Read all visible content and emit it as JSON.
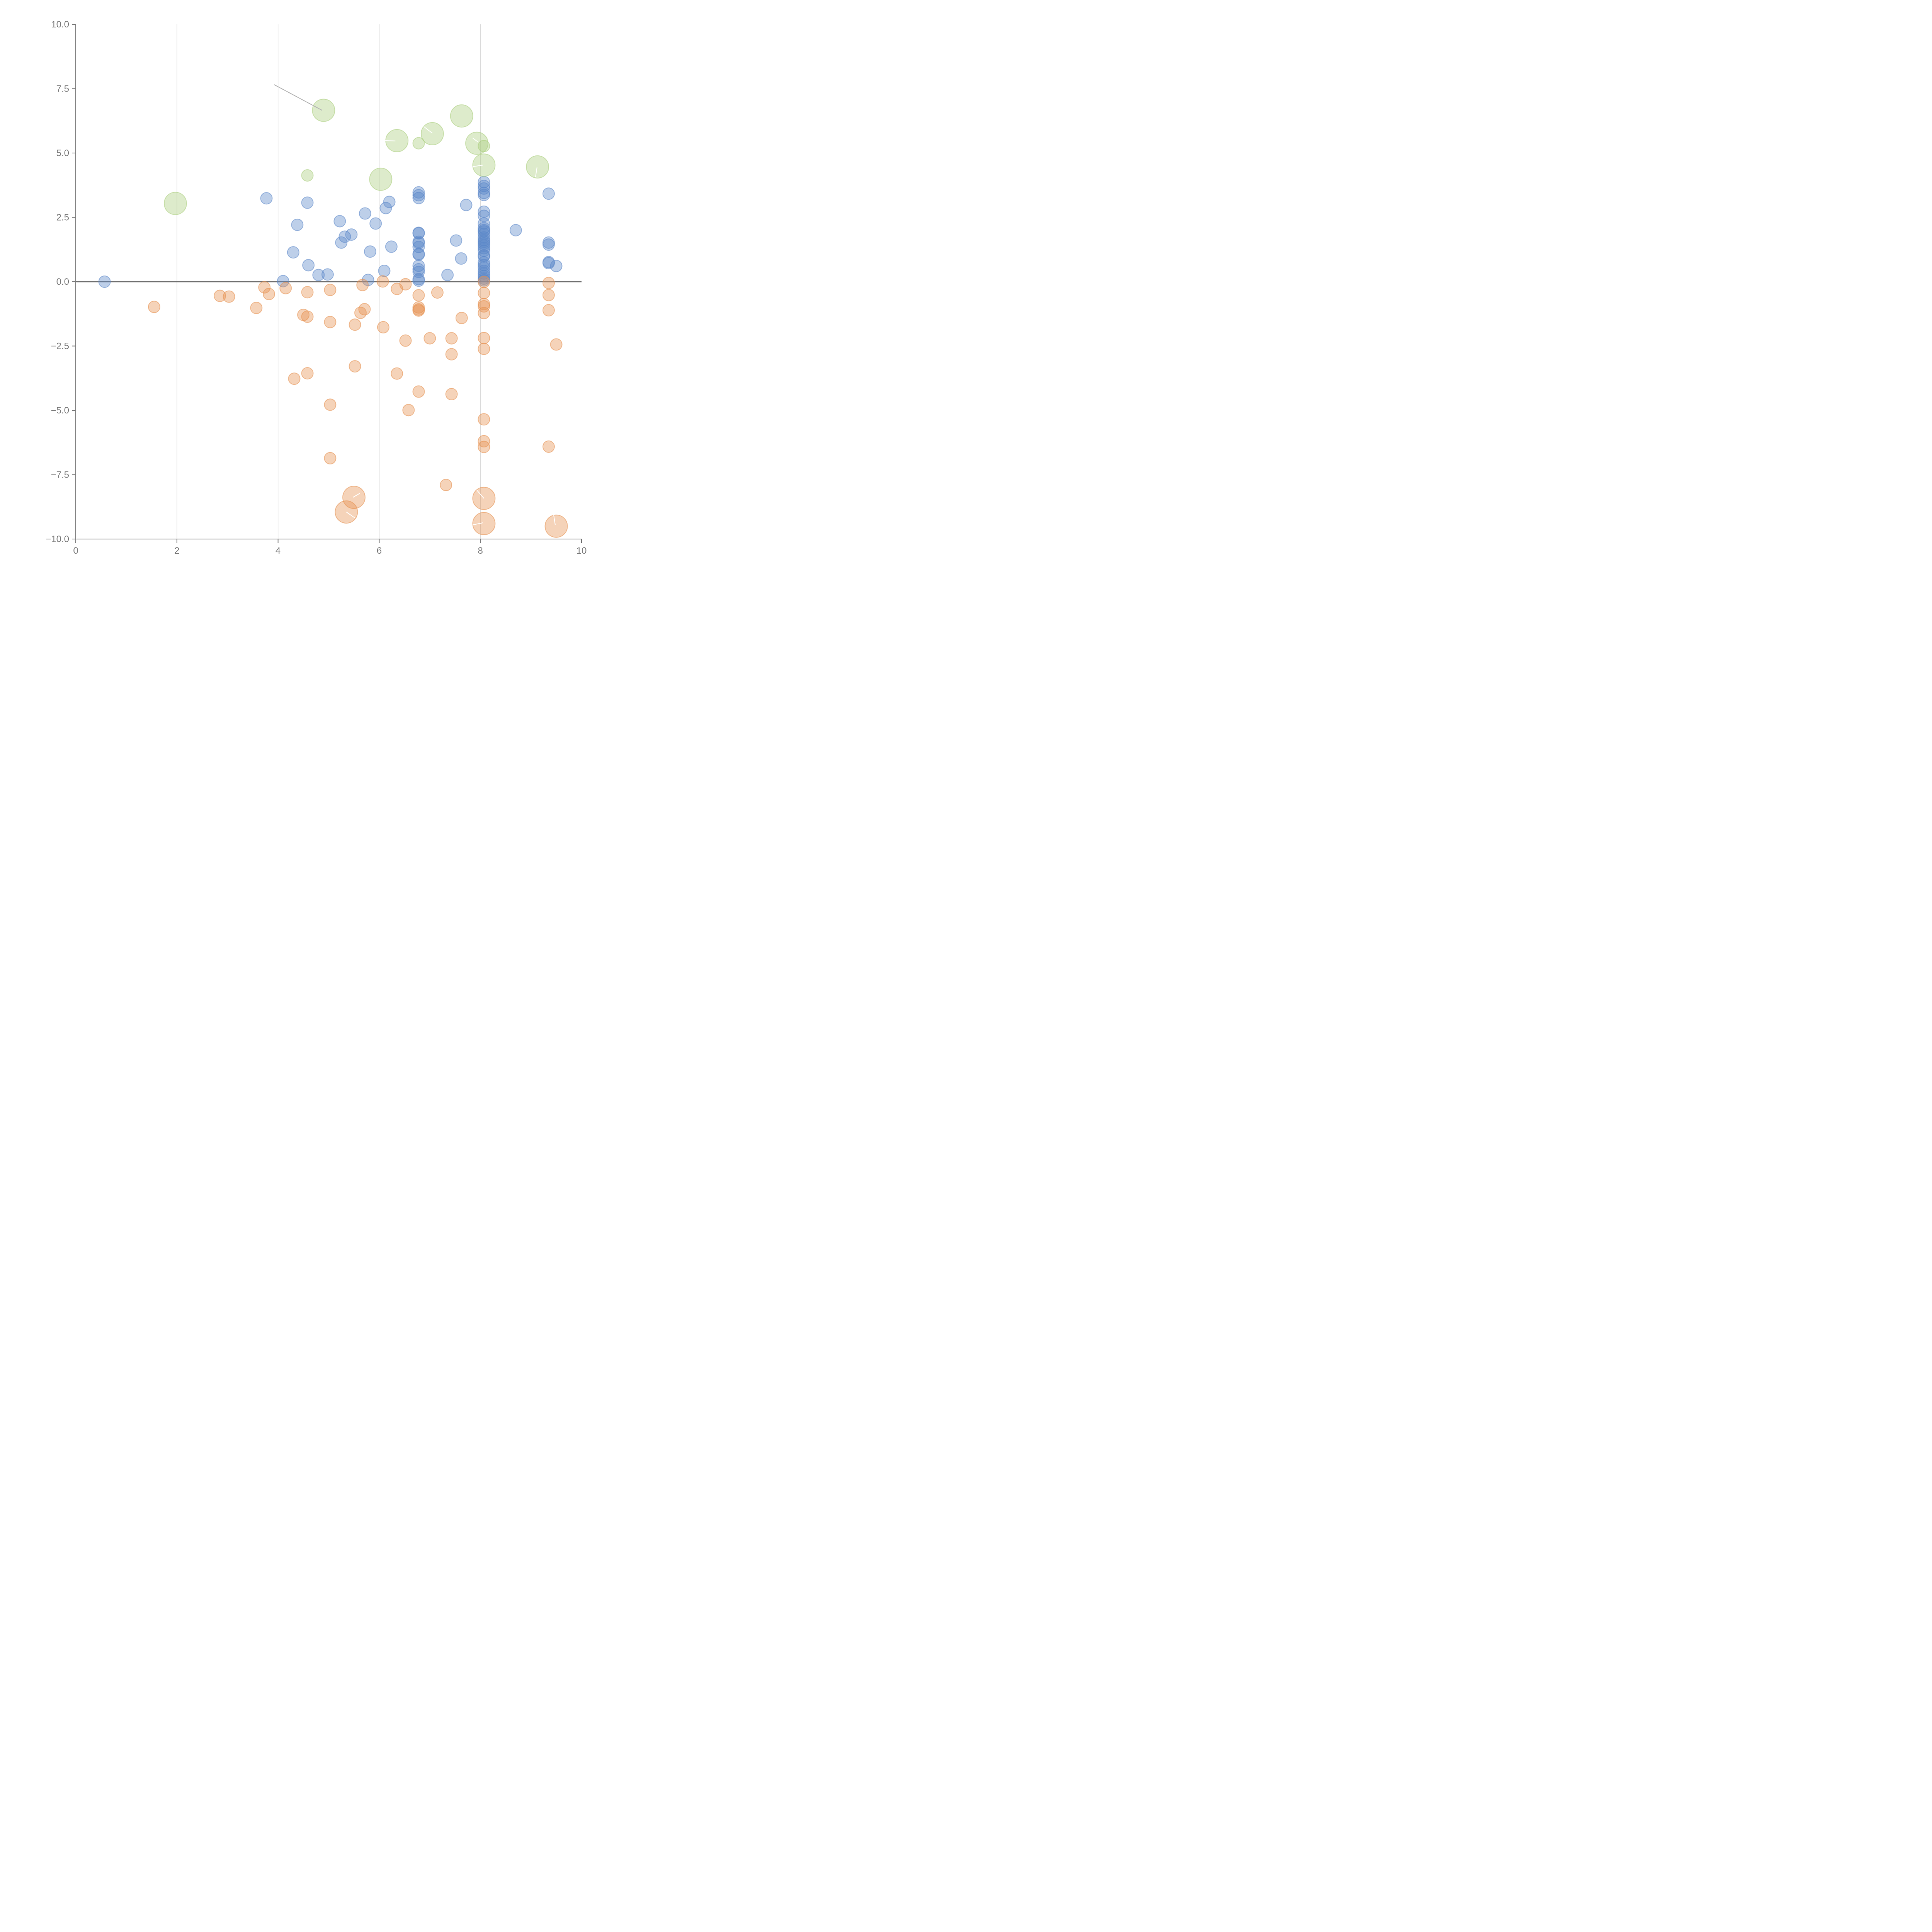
{
  "chart_data": {
    "type": "scatter",
    "title": "",
    "xlabel": "",
    "ylabel": "",
    "xlim": [
      0,
      10
    ],
    "ylim": [
      -10,
      10
    ],
    "x_ticks": [
      "0",
      "2",
      "4",
      "6",
      "8",
      "10"
    ],
    "y_ticks": [
      "10.0",
      "7.5",
      "5.0",
      "2.5",
      "0.0",
      "−2.5",
      "−5.0",
      "−7.5",
      "−10.0"
    ],
    "grid": "vertical",
    "zero_line": true,
    "colors": {
      "blue": "#5b87c8",
      "orange": "#e5904f",
      "green": "#a9cd7c",
      "axis": "#7a7a7a",
      "grid": "#d9d9d9",
      "zero": "#707070"
    },
    "series": [
      {
        "color": "blue",
        "size": "small",
        "points": [
          [
            0.57,
            0.0
          ],
          [
            3.77,
            3.24
          ],
          [
            4.1,
            0.02
          ],
          [
            4.3,
            1.14
          ],
          [
            4.38,
            2.21
          ],
          [
            4.58,
            3.07
          ],
          [
            4.6,
            0.64
          ],
          [
            4.8,
            0.26
          ],
          [
            4.98,
            0.28
          ],
          [
            5.22,
            2.35
          ],
          [
            5.25,
            1.52
          ],
          [
            5.32,
            1.75
          ],
          [
            5.45,
            1.83
          ],
          [
            5.72,
            2.65
          ],
          [
            5.78,
            0.07
          ],
          [
            5.82,
            1.17
          ],
          [
            5.93,
            2.26
          ],
          [
            6.1,
            0.42
          ],
          [
            6.13,
            2.86
          ],
          [
            6.2,
            3.1
          ],
          [
            6.24,
            1.36
          ],
          [
            6.78,
            3.47
          ],
          [
            6.78,
            3.36
          ],
          [
            6.78,
            3.25
          ],
          [
            6.78,
            1.9
          ],
          [
            6.78,
            1.88
          ],
          [
            6.78,
            1.55
          ],
          [
            6.78,
            1.5
          ],
          [
            6.78,
            1.35
          ],
          [
            6.78,
            1.08
          ],
          [
            6.78,
            1.05
          ],
          [
            6.78,
            0.62
          ],
          [
            6.78,
            0.48
          ],
          [
            6.78,
            0.38
          ],
          [
            6.78,
            0.1
          ],
          [
            6.78,
            0.04
          ],
          [
            7.35,
            0.26
          ],
          [
            7.52,
            1.6
          ],
          [
            7.62,
            0.9
          ],
          [
            7.72,
            2.98
          ],
          [
            8.07,
            3.87
          ],
          [
            8.07,
            3.72
          ],
          [
            8.07,
            3.62
          ],
          [
            8.07,
            3.45
          ],
          [
            8.07,
            3.37
          ],
          [
            8.07,
            2.72
          ],
          [
            8.07,
            2.56
          ],
          [
            8.07,
            2.26
          ],
          [
            8.07,
            2.08
          ],
          [
            8.07,
            2.0
          ],
          [
            8.07,
            1.95
          ],
          [
            8.07,
            1.85
          ],
          [
            8.07,
            1.72
          ],
          [
            8.07,
            1.62
          ],
          [
            8.07,
            1.55
          ],
          [
            8.07,
            1.48
          ],
          [
            8.07,
            1.4
          ],
          [
            8.07,
            1.3
          ],
          [
            8.07,
            1.2
          ],
          [
            8.07,
            1.02
          ],
          [
            8.07,
            0.98
          ],
          [
            8.07,
            0.75
          ],
          [
            8.07,
            0.65
          ],
          [
            8.07,
            0.55
          ],
          [
            8.07,
            0.42
          ],
          [
            8.07,
            0.32
          ],
          [
            8.07,
            0.22
          ],
          [
            8.07,
            0.12
          ],
          [
            8.07,
            0.05
          ],
          [
            8.7,
            2.0
          ],
          [
            9.35,
            3.42
          ],
          [
            9.35,
            1.52
          ],
          [
            9.35,
            1.44
          ],
          [
            9.35,
            0.76
          ],
          [
            9.35,
            0.72
          ],
          [
            9.5,
            0.61
          ]
        ]
      },
      {
        "color": "orange",
        "size": "small",
        "points": [
          [
            1.55,
            -0.98
          ],
          [
            2.85,
            -0.55
          ],
          [
            3.03,
            -0.58
          ],
          [
            3.57,
            -1.02
          ],
          [
            3.73,
            -0.22
          ],
          [
            3.82,
            -0.48
          ],
          [
            4.15,
            -0.25
          ],
          [
            4.32,
            -3.77
          ],
          [
            4.5,
            -1.29
          ],
          [
            4.58,
            -1.36
          ],
          [
            4.58,
            -0.41
          ],
          [
            4.58,
            -3.56
          ],
          [
            5.03,
            -0.32
          ],
          [
            5.03,
            -1.57
          ],
          [
            5.03,
            -4.78
          ],
          [
            5.03,
            -6.86
          ],
          [
            5.52,
            -1.67
          ],
          [
            5.52,
            -3.29
          ],
          [
            5.63,
            -1.21
          ],
          [
            5.67,
            -0.13
          ],
          [
            5.71,
            -1.07
          ],
          [
            6.07,
            0.01
          ],
          [
            6.08,
            -1.77
          ],
          [
            6.35,
            -0.28
          ],
          [
            6.35,
            -3.57
          ],
          [
            6.52,
            -0.1
          ],
          [
            6.52,
            -2.29
          ],
          [
            6.58,
            -4.99
          ],
          [
            6.78,
            -0.53
          ],
          [
            6.78,
            -1.0
          ],
          [
            6.78,
            -1.08
          ],
          [
            6.78,
            -1.12
          ],
          [
            6.78,
            -4.27
          ],
          [
            7.0,
            -2.2
          ],
          [
            7.15,
            -0.42
          ],
          [
            7.32,
            -7.9
          ],
          [
            7.43,
            -2.2
          ],
          [
            7.43,
            -2.82
          ],
          [
            7.43,
            -4.37
          ],
          [
            7.63,
            -1.41
          ],
          [
            8.07,
            -0.01
          ],
          [
            8.07,
            -0.44
          ],
          [
            8.07,
            -0.87
          ],
          [
            8.07,
            -0.96
          ],
          [
            8.07,
            -1.22
          ],
          [
            8.07,
            -2.19
          ],
          [
            8.07,
            -2.61
          ],
          [
            8.07,
            -5.35
          ],
          [
            8.07,
            -6.2
          ],
          [
            8.07,
            -6.42
          ],
          [
            9.35,
            -0.05
          ],
          [
            9.35,
            -0.52
          ],
          [
            9.35,
            -1.11
          ],
          [
            9.35,
            -6.41
          ],
          [
            9.5,
            -2.44
          ]
        ]
      },
      {
        "color": "orange",
        "size": "large",
        "points": [
          [
            5.5,
            -8.38
          ],
          [
            5.35,
            -8.95
          ],
          [
            8.07,
            -8.42
          ],
          [
            8.07,
            -9.4
          ],
          [
            9.5,
            -9.5
          ]
        ]
      },
      {
        "color": "green",
        "size": "small",
        "points": [
          [
            4.58,
            4.13
          ],
          [
            6.78,
            5.38
          ],
          [
            8.07,
            5.27
          ]
        ]
      },
      {
        "color": "green",
        "size": "large",
        "points": [
          [
            1.97,
            3.04
          ],
          [
            4.9,
            6.66
          ],
          [
            6.03,
            3.98
          ],
          [
            6.35,
            5.48
          ],
          [
            7.05,
            5.75
          ],
          [
            7.63,
            6.44
          ],
          [
            7.93,
            5.38
          ],
          [
            8.07,
            4.53
          ],
          [
            9.13,
            4.46
          ]
        ]
      }
    ],
    "annotation_segments": [
      {
        "from": [
          3.92,
          7.66
        ],
        "to": [
          4.87,
          6.66
        ],
        "color": "#b3b3b3"
      },
      {
        "from": [
          6.12,
          5.48
        ],
        "to": [
          6.32,
          5.47
        ],
        "color": "#ffffff"
      },
      {
        "from": [
          6.88,
          6.03
        ],
        "to": [
          7.05,
          5.77
        ],
        "color": "#ffffff"
      },
      {
        "from": [
          7.85,
          5.58
        ],
        "to": [
          7.96,
          5.42
        ],
        "color": "#ffffff"
      },
      {
        "from": [
          7.85,
          4.47
        ],
        "to": [
          8.05,
          4.53
        ],
        "color": "#ffffff"
      },
      {
        "from": [
          9.12,
          4.44
        ],
        "to": [
          9.09,
          4.07
        ],
        "color": "#ffffff"
      },
      {
        "from": [
          5.48,
          -8.38
        ],
        "to": [
          5.62,
          -8.22
        ],
        "color": "#ffffff"
      },
      {
        "from": [
          5.35,
          -8.95
        ],
        "to": [
          5.52,
          -9.18
        ],
        "color": "#ffffff"
      },
      {
        "from": [
          8.07,
          -8.42
        ],
        "to": [
          7.93,
          -8.1
        ],
        "color": "#ffffff"
      },
      {
        "from": [
          8.05,
          -9.37
        ],
        "to": [
          7.85,
          -9.45
        ],
        "color": "#ffffff"
      },
      {
        "from": [
          9.48,
          -9.45
        ],
        "to": [
          9.45,
          -9.07
        ],
        "color": "#ffffff"
      }
    ]
  }
}
